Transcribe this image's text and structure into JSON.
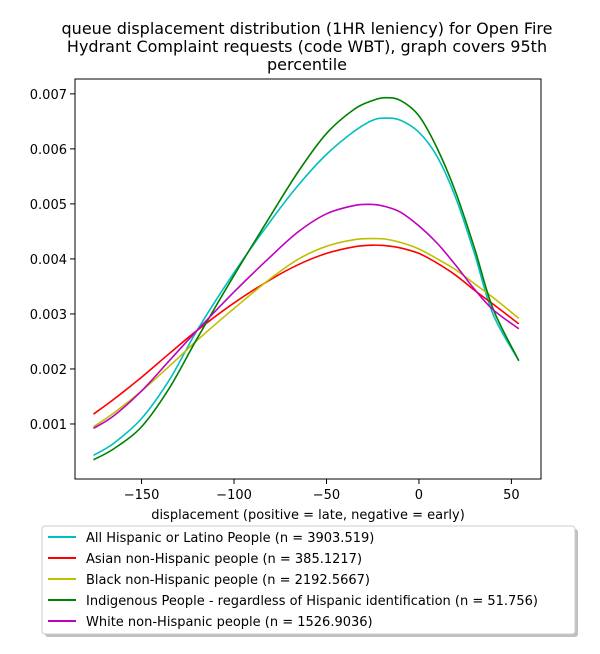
{
  "chart_data": {
    "type": "line",
    "title_lines": [
      "queue displacement distribution (1HR leniency) for Open Fire",
      "Hydrant Complaint  requests (code WBT), graph covers 95th",
      "percentile"
    ],
    "xlabel": "displacement (positive = late, negative = early)",
    "ylabel": "",
    "xlim": [
      -186,
      66
    ],
    "ylim": [
      0,
      0.00727
    ],
    "x_ticks": [
      -150,
      -100,
      -50,
      0,
      50
    ],
    "x_tick_labels": [
      "−150",
      "−100",
      "−50",
      "0",
      "50"
    ],
    "y_ticks": [
      0.001,
      0.002,
      0.003,
      0.004,
      0.005,
      0.006,
      0.007
    ],
    "y_tick_labels": [
      "0.001",
      "0.002",
      "0.003",
      "0.004",
      "0.005",
      "0.006",
      "0.007"
    ],
    "grid": false,
    "legend_placement": "below",
    "x": [
      -176,
      -165,
      -150,
      -135,
      -120,
      -100,
      -80,
      -65,
      -50,
      -35,
      -25,
      -18,
      -10,
      0,
      10,
      20,
      30,
      40,
      54
    ],
    "series": [
      {
        "name": "All Hispanic or Latino People (n = 3903.519)",
        "color": "#00bfbf",
        "values": [
          0.00043,
          0.00065,
          0.0011,
          0.0018,
          0.0027,
          0.00375,
          0.0047,
          0.00535,
          0.0059,
          0.00632,
          0.00652,
          0.00656,
          0.00652,
          0.0063,
          0.00585,
          0.0051,
          0.0041,
          0.003,
          0.00215
        ]
      },
      {
        "name": "Asian non-Hispanic people (n = 385.1217)",
        "color": "#ff0000",
        "values": [
          0.00118,
          0.00145,
          0.00185,
          0.00228,
          0.0027,
          0.0032,
          0.00363,
          0.0039,
          0.0041,
          0.00422,
          0.00425,
          0.00424,
          0.0042,
          0.0041,
          0.00392,
          0.0037,
          0.00343,
          0.00318,
          0.00282
        ]
      },
      {
        "name": "Black non-Hispanic people (n = 2192.5667)",
        "color": "#bfbf00",
        "values": [
          0.00095,
          0.0012,
          0.0016,
          0.00205,
          0.00252,
          0.0031,
          0.00365,
          0.004,
          0.00423,
          0.00435,
          0.00437,
          0.00436,
          0.0043,
          0.00418,
          0.004,
          0.0038,
          0.00355,
          0.0033,
          0.00292
        ]
      },
      {
        "name": "Indigenous People - regardless of Hispanic identification (n = 51.756)",
        "color": "#008000",
        "values": [
          0.00035,
          0.00055,
          0.00095,
          0.00165,
          0.00255,
          0.0037,
          0.0048,
          0.0056,
          0.00628,
          0.00672,
          0.00688,
          0.00693,
          0.00688,
          0.0066,
          0.006,
          0.0052,
          0.0042,
          0.0031,
          0.00215
        ]
      },
      {
        "name": "White non-Hispanic people (n = 1526.9036)",
        "color": "#bf00bf",
        "values": [
          0.00092,
          0.00115,
          0.0016,
          0.00215,
          0.0027,
          0.0034,
          0.00405,
          0.0045,
          0.00482,
          0.00497,
          0.00499,
          0.00495,
          0.00485,
          0.0046,
          0.00428,
          0.00388,
          0.00345,
          0.00308,
          0.00273
        ]
      }
    ]
  }
}
